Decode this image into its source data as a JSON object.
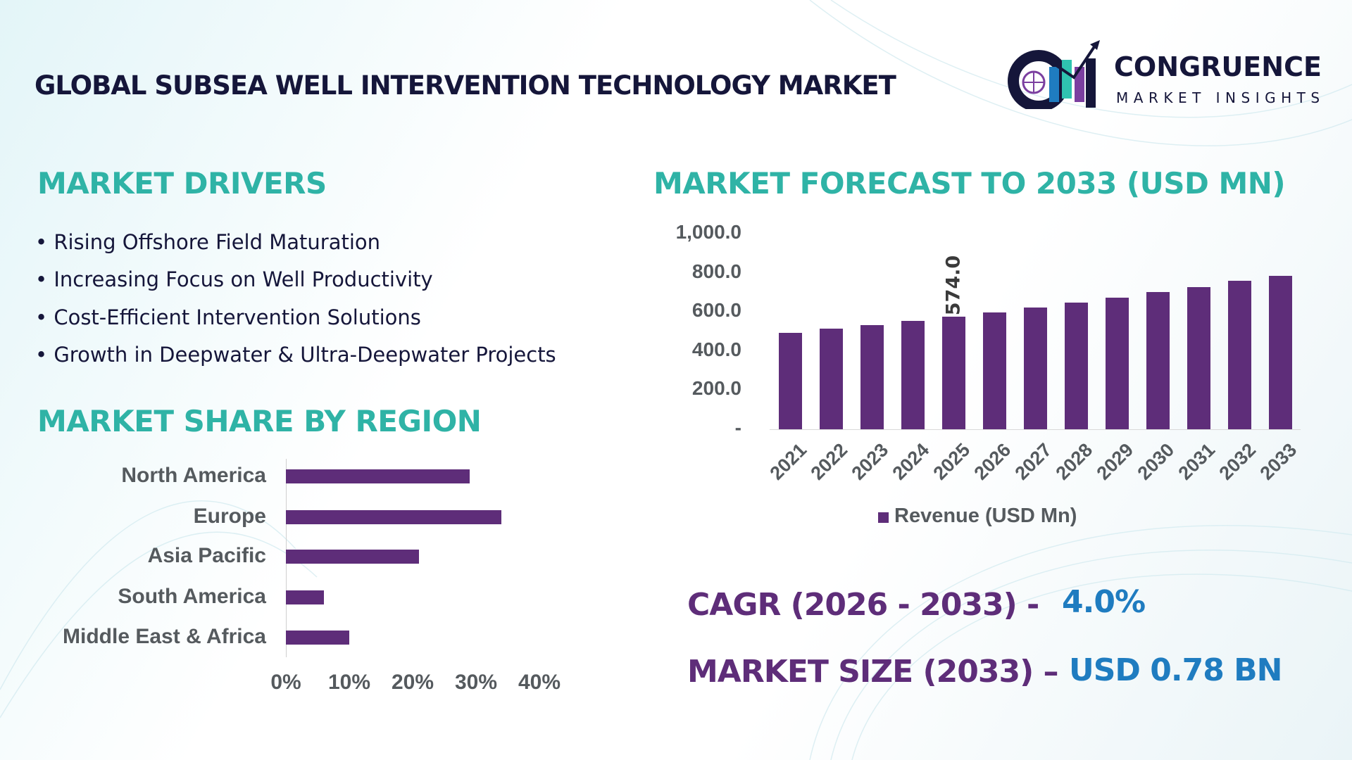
{
  "header": {
    "title": "GLOBAL SUBSEA WELL INTERVENTION TECHNOLOGY MARKET"
  },
  "logo": {
    "name": "CONGRUENCE",
    "tagline": "MARKET INSIGHTS"
  },
  "drivers": {
    "heading": "MARKET DRIVERS",
    "items": [
      "• Rising Offshore Field Maturation",
      "• Increasing Focus on Well Productivity",
      "• Cost-Efficient Intervention Solutions",
      "• Growth in Deepwater & Ultra-Deepwater Projects"
    ]
  },
  "region": {
    "heading": "MARKET SHARE BY REGION"
  },
  "forecast": {
    "heading": "MARKET FORECAST TO 2033 (USD MN)"
  },
  "stats": {
    "cagr_label": "CAGR (2026 - 2033) -",
    "cagr_value": "4.0%",
    "size_label": "MARKET SIZE (2033) –",
    "size_value": "USD 0.78 BN"
  },
  "colors": {
    "bar": "#5e2d79",
    "heading": "#2fb3a6",
    "stat_label": "#5e2d79",
    "stat_value": "#1f7cc0"
  },
  "chart_data": [
    {
      "type": "bar",
      "orientation": "horizontal",
      "categories": [
        "North America",
        "Europe",
        "Asia Pacific",
        "South America",
        "Middle East & Africa"
      ],
      "values": [
        29,
        34,
        21,
        6,
        10
      ],
      "xlim": [
        0,
        40
      ],
      "xticks": [
        "0%",
        "10%",
        "20%",
        "30%",
        "40%"
      ],
      "grid": false
    },
    {
      "type": "bar",
      "categories": [
        "2021",
        "2022",
        "2023",
        "2024",
        "2025",
        "2026",
        "2027",
        "2028",
        "2029",
        "2030",
        "2031",
        "2032",
        "2033"
      ],
      "values": [
        493,
        515,
        533,
        554,
        574,
        598,
        623,
        648,
        673,
        702,
        727,
        759,
        785
      ],
      "data_labels": [
        {
          "category": "2025",
          "text": "574.0"
        }
      ],
      "ylim": [
        0,
        1000
      ],
      "yticks": [
        "-",
        "200.0",
        "400.0",
        "600.0",
        "800.0",
        "1,000.0"
      ],
      "legend": {
        "position": "bottom",
        "entries": [
          "Revenue (USD Mn)"
        ]
      },
      "grid": false
    }
  ]
}
